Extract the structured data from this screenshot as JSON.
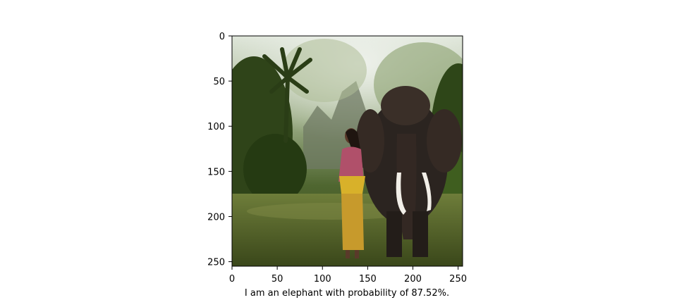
{
  "chart_data": {
    "type": "image",
    "x_ticks": [
      0,
      50,
      100,
      150,
      200,
      250
    ],
    "y_ticks": [
      0,
      50,
      100,
      150,
      200,
      250
    ],
    "xlim": [
      0,
      255
    ],
    "ylim": [
      255,
      0
    ],
    "xlabel": "I am an elephant with probability of 87.52%.",
    "grid": false,
    "image_content": "photo of a woman in traditional dress walking beside an elephant on a mossy forest path"
  },
  "colors": {
    "foliage_dark": "#1f2e12",
    "foliage_mid": "#4c6a2e",
    "foliage_light": "#9fb486",
    "sky_haze": "#e3e9e0",
    "ground": "#5f6f2a",
    "elephant": "#2b2420",
    "tusk": "#f2efe8",
    "dress_pink": "#b0506a",
    "sash_yellow": "#d8b12a"
  }
}
